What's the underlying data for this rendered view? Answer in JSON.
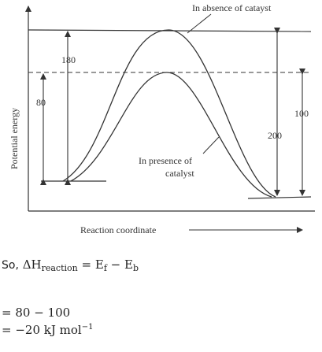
{
  "diagram": {
    "y_axis_label": "Potential energy",
    "x_axis_label": "Reaction coordinate",
    "curve_label_absence": "In absence of catayst",
    "curve_label_presence_line1": "In presence of",
    "curve_label_presence_line2": "catalyst",
    "measure_180": "180",
    "measure_80": "80",
    "measure_200": "200",
    "measure_100": "100"
  },
  "solution": {
    "line1_prefix": "So,",
    "line1_delta": "ΔH",
    "line1_sub": "reaction",
    "line1_eq": " = E",
    "line1_f": "f",
    "line1_minus": " − E",
    "line1_b": "b",
    "line2": "= 80 − 100",
    "line3_prefix": "= −20  kJ  mol",
    "line3_sup": "−1"
  }
}
